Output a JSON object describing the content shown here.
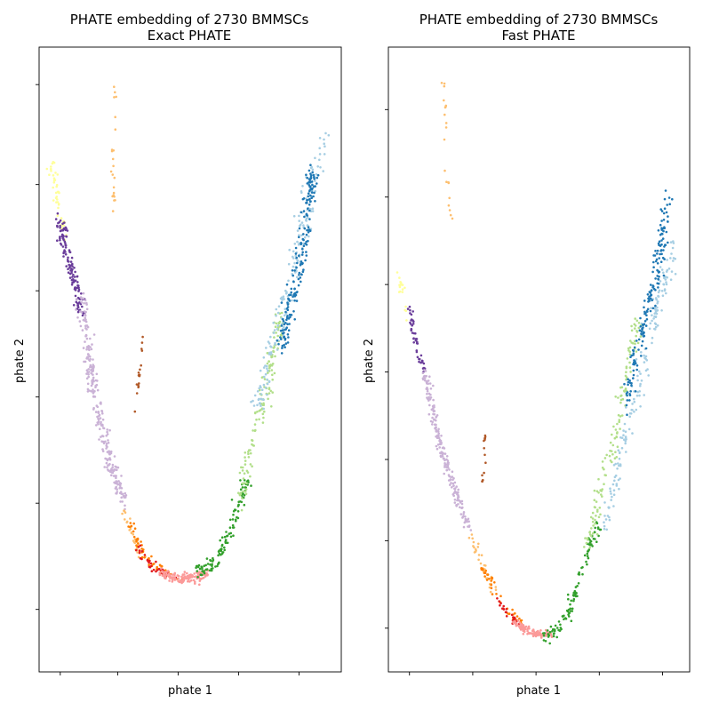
{
  "figure": {
    "background": "#ffffff"
  },
  "chart_data": [
    {
      "type": "scatter",
      "title": "PHATE embedding of 2730 BMMSCs",
      "subtitle": "Exact PHATE",
      "xlabel": "phate 1",
      "ylabel": "phate 2",
      "xlim": [
        0,
        100
      ],
      "ylim": [
        0,
        100
      ],
      "x_tick_positions": [
        7,
        26,
        46,
        66,
        86
      ],
      "y_tick_positions": [
        10,
        27,
        44,
        61,
        78,
        94
      ],
      "tick_labels_shown": false,
      "grid": false,
      "legend": "none",
      "series": [
        {
          "color": "#ffff99",
          "anchors": [
            [
              4,
              81
            ],
            [
              5,
              79
            ],
            [
              6,
              76
            ],
            [
              7,
              73
            ],
            [
              8,
              70
            ]
          ],
          "count": 45,
          "jitter": [
            1.4,
            1.2
          ]
        },
        {
          "color": "#6a3d9a",
          "anchors": [
            [
              7,
              72
            ],
            [
              9,
              67
            ],
            [
              12,
              62
            ],
            [
              14,
              58
            ]
          ],
          "count": 130,
          "jitter": [
            1.3,
            1.1
          ]
        },
        {
          "color": "#cab2d6",
          "anchors": [
            [
              14,
              60
            ],
            [
              16,
              52
            ],
            [
              18,
              46
            ],
            [
              21,
              39
            ],
            [
              24,
              33
            ],
            [
              28,
              27
            ]
          ],
          "count": 260,
          "jitter": [
            1.5,
            1.0
          ]
        },
        {
          "color": "#fdbf6f",
          "anchors": [
            [
              25,
              95
            ],
            [
              25,
              90
            ],
            [
              25,
              86
            ],
            [
              24,
              80
            ],
            [
              25,
              74
            ]
          ],
          "count": 22,
          "jitter": [
            0.6,
            0.6
          ]
        },
        {
          "color": "#fdbf6f",
          "anchors": [
            [
              28,
              26
            ],
            [
              31,
              22
            ],
            [
              34,
              19
            ]
          ],
          "count": 30,
          "jitter": [
            1.0,
            0.8
          ]
        },
        {
          "color": "#ff7f00",
          "anchors": [
            [
              30,
              24
            ],
            [
              33,
              20
            ],
            [
              36,
              18
            ],
            [
              41,
              16
            ],
            [
              48,
              15
            ]
          ],
          "count": 50,
          "jitter": [
            1.0,
            0.7
          ]
        },
        {
          "color": "#e31a1c",
          "anchors": [
            [
              33,
              20
            ],
            [
              37,
              17
            ],
            [
              41,
              16
            ],
            [
              44,
              15
            ]
          ],
          "count": 40,
          "jitter": [
            0.9,
            0.6
          ]
        },
        {
          "color": "#fb9a99",
          "anchors": [
            [
              40,
              16
            ],
            [
              44,
              15
            ],
            [
              48,
              15
            ],
            [
              52,
              15
            ],
            [
              56,
              16
            ]
          ],
          "count": 140,
          "jitter": [
            1.1,
            0.7
          ]
        },
        {
          "color": "#b15928",
          "anchors": [
            [
              34,
              55
            ],
            [
              34,
              51
            ],
            [
              33,
              47
            ],
            [
              32,
              42
            ]
          ],
          "count": 18,
          "jitter": [
            0.4,
            0.8
          ]
        },
        {
          "color": "#33a02c",
          "anchors": [
            [
              52,
              16
            ],
            [
              57,
              17
            ],
            [
              61,
              20
            ],
            [
              65,
              25
            ],
            [
              69,
              31
            ]
          ],
          "count": 120,
          "jitter": [
            1.3,
            1.0
          ]
        },
        {
          "color": "#b2df8a",
          "anchors": [
            [
              66,
              27
            ],
            [
              70,
              35
            ],
            [
              74,
              43
            ],
            [
              77,
              50
            ],
            [
              80,
              57
            ]
          ],
          "count": 140,
          "jitter": [
            1.6,
            1.3
          ]
        },
        {
          "color": "#a6cee3",
          "anchors": [
            [
              72,
              42
            ],
            [
              76,
              50
            ],
            [
              81,
              58
            ],
            [
              85,
              66
            ],
            [
              88,
              73
            ],
            [
              95,
              86
            ]
          ],
          "count": 180,
          "jitter": [
            2.0,
            1.6
          ]
        },
        {
          "color": "#1f78b4",
          "anchors": [
            [
              80,
              52
            ],
            [
              83,
              58
            ],
            [
              86,
              64
            ],
            [
              88,
              70
            ],
            [
              89,
              76
            ],
            [
              91,
              80
            ]
          ],
          "count": 190,
          "jitter": [
            1.6,
            1.5
          ]
        }
      ]
    },
    {
      "type": "scatter",
      "title": "PHATE embedding of 2730 BMMSCs",
      "subtitle": "Fast PHATE",
      "xlabel": "phate 1",
      "ylabel": "phate 2",
      "xlim": [
        0,
        100
      ],
      "ylim": [
        0,
        100
      ],
      "x_tick_positions": [
        7,
        28,
        49,
        70,
        91
      ],
      "y_tick_positions": [
        7,
        21,
        34,
        48,
        62,
        76,
        90
      ],
      "tick_labels_shown": false,
      "grid": false,
      "legend": "none",
      "series": [
        {
          "color": "#ffff99",
          "anchors": [
            [
              4,
              63
            ],
            [
              5,
              60
            ],
            [
              6,
              57
            ]
          ],
          "count": 18,
          "jitter": [
            0.8,
            0.8
          ]
        },
        {
          "color": "#6a3d9a",
          "anchors": [
            [
              7,
              58
            ],
            [
              9,
              53
            ],
            [
              12,
              48
            ]
          ],
          "count": 45,
          "jitter": [
            0.7,
            0.8
          ]
        },
        {
          "color": "#cab2d6",
          "anchors": [
            [
              12,
              48
            ],
            [
              15,
              41
            ],
            [
              18,
              35
            ],
            [
              22,
              29
            ],
            [
              27,
              23
            ]
          ],
          "count": 200,
          "jitter": [
            1.0,
            0.8
          ]
        },
        {
          "color": "#fdbf6f",
          "anchors": [
            [
              18,
              95
            ],
            [
              19,
              90
            ],
            [
              19,
              86
            ],
            [
              20,
              76
            ],
            [
              21,
              72
            ]
          ],
          "count": 20,
          "jitter": [
            0.5,
            0.6
          ]
        },
        {
          "color": "#fdbf6f",
          "anchors": [
            [
              27,
              22
            ],
            [
              31,
              17
            ],
            [
              35,
              13
            ]
          ],
          "count": 30,
          "jitter": [
            1.0,
            0.8
          ]
        },
        {
          "color": "#ff7f00",
          "anchors": [
            [
              31,
              17
            ],
            [
              35,
              13
            ],
            [
              39,
              10
            ],
            [
              44,
              8
            ]
          ],
          "count": 40,
          "jitter": [
            0.9,
            0.6
          ]
        },
        {
          "color": "#e31a1c",
          "anchors": [
            [
              36,
              12
            ],
            [
              40,
              9
            ],
            [
              44,
              8
            ]
          ],
          "count": 25,
          "jitter": [
            0.8,
            0.5
          ]
        },
        {
          "color": "#fb9a99",
          "anchors": [
            [
              42,
              8
            ],
            [
              46,
              6.5
            ],
            [
              50,
              6
            ],
            [
              54,
              6
            ]
          ],
          "count": 110,
          "jitter": [
            1.0,
            0.5
          ]
        },
        {
          "color": "#b15928",
          "anchors": [
            [
              32,
              38
            ],
            [
              32,
              36
            ],
            [
              32,
              33
            ],
            [
              31,
              30
            ]
          ],
          "count": 14,
          "jitter": [
            0.4,
            0.6
          ]
        },
        {
          "color": "#33a02c",
          "anchors": [
            [
              52,
              6
            ],
            [
              57,
              7
            ],
            [
              61,
              11
            ],
            [
              65,
              17
            ],
            [
              70,
              24
            ]
          ],
          "count": 110,
          "jitter": [
            1.3,
            0.9
          ]
        },
        {
          "color": "#b2df8a",
          "anchors": [
            [
              66,
              20
            ],
            [
              71,
              30
            ],
            [
              76,
              40
            ],
            [
              80,
              50
            ],
            [
              83,
              56
            ]
          ],
          "count": 130,
          "jitter": [
            1.5,
            1.2
          ]
        },
        {
          "color": "#a6cee3",
          "anchors": [
            [
              71,
              22
            ],
            [
              76,
              32
            ],
            [
              81,
              42
            ],
            [
              86,
              52
            ],
            [
              90,
              60
            ],
            [
              95,
              68
            ]
          ],
          "count": 170,
          "jitter": [
            1.8,
            1.5
          ]
        },
        {
          "color": "#1f78b4",
          "anchors": [
            [
              79,
              42
            ],
            [
              82,
              50
            ],
            [
              86,
              58
            ],
            [
              89,
              64
            ],
            [
              91,
              70
            ],
            [
              93,
              76
            ]
          ],
          "count": 170,
          "jitter": [
            1.5,
            1.4
          ]
        }
      ]
    }
  ]
}
